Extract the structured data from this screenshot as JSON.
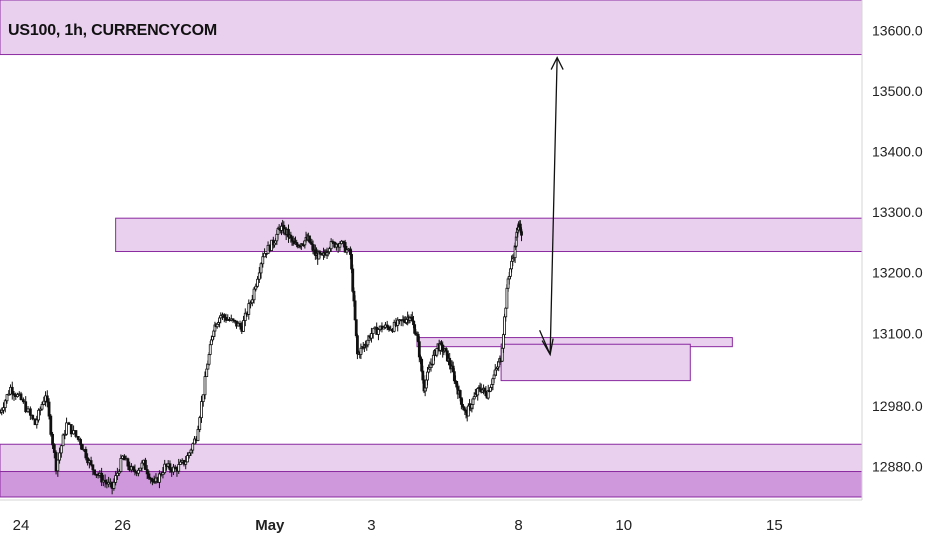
{
  "title": "US100, 1h, CURRENCYCOM",
  "colors": {
    "zone_fill": "#e8d0ee",
    "zone_stroke": "#8b2aa0",
    "zone_dark_fill": "#cf97dc",
    "candle": "#111111",
    "axis_text": "#222222"
  },
  "chart_data": {
    "type": "candlestick",
    "symbol": "US100",
    "interval": "1h",
    "source": "CURRENCYCOM",
    "ylim": [
      12825,
      13650
    ],
    "xlim": [
      0,
      24.6
    ],
    "y_ticks": [
      {
        "value": 13600,
        "label": "13600.0"
      },
      {
        "value": 13500,
        "label": "13500.0"
      },
      {
        "value": 13400,
        "label": "13400.0"
      },
      {
        "value": 13300,
        "label": "13300.0"
      },
      {
        "value": 13200,
        "label": "13200.0"
      },
      {
        "value": 13100,
        "label": "13100.0"
      },
      {
        "value": 12980,
        "label": "12980.0"
      },
      {
        "value": 12880,
        "label": "12880.0"
      }
    ],
    "x_ticks": [
      {
        "day": 0.6,
        "label": "24",
        "bold": false
      },
      {
        "day": 3.5,
        "label": "26",
        "bold": false
      },
      {
        "day": 7.7,
        "label": "May",
        "bold": true
      },
      {
        "day": 10.6,
        "label": "3",
        "bold": false
      },
      {
        "day": 14.8,
        "label": "8",
        "bold": false
      },
      {
        "day": 17.8,
        "label": "10",
        "bold": false
      },
      {
        "day": 22.1,
        "label": "15",
        "bold": false
      }
    ],
    "price_path": [
      [
        0.0,
        12970
      ],
      [
        0.3,
        13010
      ],
      [
        0.6,
        12990
      ],
      [
        1.0,
        12950
      ],
      [
        1.3,
        13000
      ],
      [
        1.6,
        12880
      ],
      [
        1.9,
        12950
      ],
      [
        2.3,
        12920
      ],
      [
        2.6,
        12880
      ],
      [
        2.9,
        12860
      ],
      [
        3.2,
        12845
      ],
      [
        3.5,
        12895
      ],
      [
        3.8,
        12870
      ],
      [
        4.1,
        12885
      ],
      [
        4.4,
        12850
      ],
      [
        4.7,
        12880
      ],
      [
        5.0,
        12875
      ],
      [
        5.3,
        12890
      ],
      [
        5.6,
        12930
      ],
      [
        5.9,
        13040
      ],
      [
        6.1,
        13110
      ],
      [
        6.3,
        13130
      ],
      [
        6.6,
        13120
      ],
      [
        6.9,
        13110
      ],
      [
        7.2,
        13160
      ],
      [
        7.5,
        13230
      ],
      [
        7.8,
        13250
      ],
      [
        8.0,
        13275
      ],
      [
        8.2,
        13265
      ],
      [
        8.4,
        13245
      ],
      [
        8.6,
        13250
      ],
      [
        8.8,
        13255
      ],
      [
        9.0,
        13230
      ],
      [
        9.2,
        13225
      ],
      [
        9.4,
        13245
      ],
      [
        9.7,
        13250
      ],
      [
        10.0,
        13230
      ],
      [
        10.2,
        13065
      ],
      [
        10.4,
        13080
      ],
      [
        10.6,
        13100
      ],
      [
        10.9,
        13110
      ],
      [
        11.2,
        13110
      ],
      [
        11.5,
        13120
      ],
      [
        11.7,
        13130
      ],
      [
        11.9,
        13095
      ],
      [
        12.1,
        13010
      ],
      [
        12.3,
        13050
      ],
      [
        12.5,
        13080
      ],
      [
        12.7,
        13070
      ],
      [
        12.9,
        13040
      ],
      [
        13.1,
        13000
      ],
      [
        13.3,
        12965
      ],
      [
        13.5,
        12990
      ],
      [
        13.7,
        13010
      ],
      [
        13.9,
        13000
      ],
      [
        14.1,
        13030
      ],
      [
        14.3,
        13060
      ],
      [
        14.5,
        13190
      ],
      [
        14.7,
        13240
      ],
      [
        14.8,
        13285
      ],
      [
        14.9,
        13250
      ]
    ],
    "zones": [
      {
        "name": "top-resistance",
        "x0": 0,
        "x1": 24.6,
        "y0": 13560,
        "y1": 13660
      },
      {
        "name": "supply-zone",
        "x0": 3.3,
        "x1": 24.6,
        "y0": 13235,
        "y1": 13290
      },
      {
        "name": "demand-line-zone",
        "x0": 11.9,
        "x1": 20.9,
        "y0": 13078,
        "y1": 13093
      },
      {
        "name": "demand-zone",
        "x0": 14.3,
        "x1": 19.7,
        "y0": 13022,
        "y1": 13082
      },
      {
        "name": "support-zone-upper",
        "x0": 0,
        "x1": 24.6,
        "y0": 12870,
        "y1": 12917
      },
      {
        "name": "support-zone-lower",
        "x0": 0,
        "x1": 24.6,
        "y0": 12830,
        "y1": 12872
      }
    ],
    "projection": [
      [
        15.4,
        13105
      ],
      [
        15.7,
        13065
      ],
      [
        15.9,
        13555
      ]
    ],
    "projection_arrowheads": [
      "down",
      "up"
    ]
  }
}
